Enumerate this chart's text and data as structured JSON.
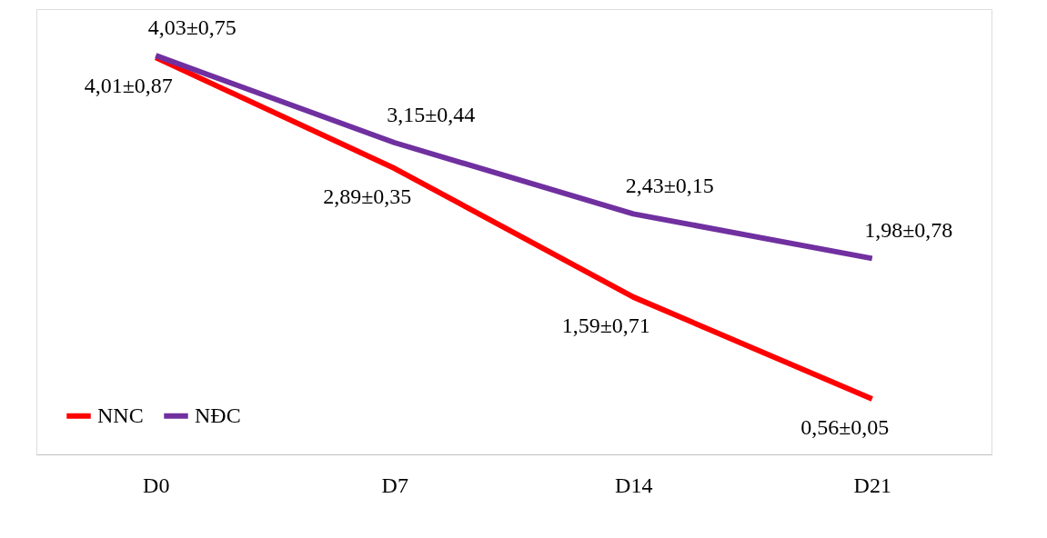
{
  "chart_data": {
    "type": "line",
    "categories": [
      "D0",
      "D7",
      "D14",
      "D21"
    ],
    "series": [
      {
        "name": "NNC",
        "color": "#ff0000",
        "values": [
          4.01,
          2.89,
          1.59,
          0.56
        ],
        "value_labels": [
          "4,01±0,87",
          "2,89±0,35",
          "1,59±0,71",
          "0,56±0,05"
        ]
      },
      {
        "name": "NĐC",
        "color": "#7030a0",
        "values": [
          4.03,
          3.15,
          2.43,
          1.98
        ],
        "value_labels": [
          "4,03±0,75",
          "3,15±0,44",
          "2,43±0,15",
          "1,98±0,78"
        ]
      }
    ],
    "ylim": [
      0,
      4.5
    ],
    "tick_labels": "x",
    "legend": "bottom left",
    "marker": "none",
    "line_style": "solid"
  }
}
